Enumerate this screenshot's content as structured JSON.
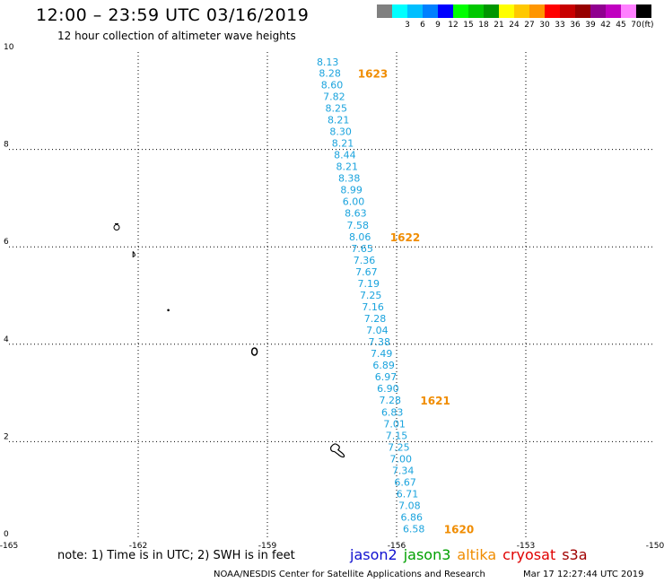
{
  "title": "12:00 – 23:59 UTC 03/16/2019",
  "subtitle": "12 hour collection of altimeter wave heights",
  "legend": {
    "unit": "(ft)",
    "items": [
      {
        "label": "",
        "color": "#808080"
      },
      {
        "label": "3",
        "color": "#00ffff"
      },
      {
        "label": "6",
        "color": "#00bfff"
      },
      {
        "label": "9",
        "color": "#0080ff"
      },
      {
        "label": "12",
        "color": "#0000ff"
      },
      {
        "label": "15",
        "color": "#00ff00"
      },
      {
        "label": "18",
        "color": "#00c800"
      },
      {
        "label": "21",
        "color": "#009600"
      },
      {
        "label": "24",
        "color": "#ffff00"
      },
      {
        "label": "27",
        "color": "#ffc800"
      },
      {
        "label": "30",
        "color": "#ff9600"
      },
      {
        "label": "33",
        "color": "#ff0000"
      },
      {
        "label": "36",
        "color": "#c80000"
      },
      {
        "label": "39",
        "color": "#960000"
      },
      {
        "label": "42",
        "color": "#900090"
      },
      {
        "label": "45",
        "color": "#c000c0"
      },
      {
        "label": "70",
        "color": "#ff80ff"
      },
      {
        "label": "",
        "color": "#000000"
      }
    ]
  },
  "map": {
    "lon_range": [
      -165,
      -150
    ],
    "lat_range": [
      0,
      10
    ],
    "lon_ticks": [
      "-165",
      "-162",
      "-159",
      "-156",
      "-153",
      "-150"
    ],
    "lat_ticks": [
      "0",
      "2",
      "4",
      "6",
      "8",
      "10"
    ],
    "swh_color": "#1aa3dd",
    "pass_color": "#f08c00",
    "islands": [
      {
        "name": "island-a",
        "lon": -162.5,
        "lat": 6.4
      },
      {
        "name": "island-b",
        "lon": -162.1,
        "lat": 5.85
      },
      {
        "name": "island-c",
        "lon": -161.3,
        "lat": 4.7
      },
      {
        "name": "island-d",
        "lon": -159.3,
        "lat": 3.85
      },
      {
        "name": "island-e",
        "lon": -157.4,
        "lat": 1.85
      }
    ]
  },
  "track": {
    "swh": [
      {
        "label": "8.13",
        "lon": -157.6,
        "lat": 9.8
      },
      {
        "label": "8.28",
        "lon": -157.55,
        "lat": 9.57
      },
      {
        "label": "8.60",
        "lon": -157.5,
        "lat": 9.33
      },
      {
        "label": "7.82",
        "lon": -157.45,
        "lat": 9.09
      },
      {
        "label": "8.25",
        "lon": -157.4,
        "lat": 8.85
      },
      {
        "label": "8.21",
        "lon": -157.35,
        "lat": 8.61
      },
      {
        "label": "8.30",
        "lon": -157.3,
        "lat": 8.37
      },
      {
        "label": "8.21",
        "lon": -157.25,
        "lat": 8.13
      },
      {
        "label": "8.44",
        "lon": -157.2,
        "lat": 7.89
      },
      {
        "label": "8.21",
        "lon": -157.15,
        "lat": 7.65
      },
      {
        "label": "8.38",
        "lon": -157.1,
        "lat": 7.41
      },
      {
        "label": "8.99",
        "lon": -157.05,
        "lat": 7.17
      },
      {
        "label": "6.00",
        "lon": -157.0,
        "lat": 6.93
      },
      {
        "label": "8.63",
        "lon": -156.95,
        "lat": 6.69
      },
      {
        "label": "7.58",
        "lon": -156.9,
        "lat": 6.45
      },
      {
        "label": "8.06",
        "lon": -156.85,
        "lat": 6.21
      },
      {
        "label": "7.65",
        "lon": -156.8,
        "lat": 5.97
      },
      {
        "label": "7.36",
        "lon": -156.75,
        "lat": 5.73
      },
      {
        "label": "7.67",
        "lon": -156.7,
        "lat": 5.49
      },
      {
        "label": "7.19",
        "lon": -156.65,
        "lat": 5.25
      },
      {
        "label": "7.25",
        "lon": -156.6,
        "lat": 5.01
      },
      {
        "label": "7.16",
        "lon": -156.55,
        "lat": 4.77
      },
      {
        "label": "7.28",
        "lon": -156.5,
        "lat": 4.53
      },
      {
        "label": "7.04",
        "lon": -156.45,
        "lat": 4.29
      },
      {
        "label": "7.38",
        "lon": -156.4,
        "lat": 4.05
      },
      {
        "label": "7.49",
        "lon": -156.35,
        "lat": 3.81
      },
      {
        "label": "6.89",
        "lon": -156.3,
        "lat": 3.57
      },
      {
        "label": "6.97",
        "lon": -156.25,
        "lat": 3.33
      },
      {
        "label": "6.90",
        "lon": -156.2,
        "lat": 3.09
      },
      {
        "label": "7.28",
        "lon": -156.15,
        "lat": 2.85
      },
      {
        "label": "6.83",
        "lon": -156.1,
        "lat": 2.61
      },
      {
        "label": "7.01",
        "lon": -156.05,
        "lat": 2.37
      },
      {
        "label": "7.15",
        "lon": -156.0,
        "lat": 2.13
      },
      {
        "label": "7.25",
        "lon": -155.95,
        "lat": 1.89
      },
      {
        "label": "7.00",
        "lon": -155.9,
        "lat": 1.65
      },
      {
        "label": "7.34",
        "lon": -155.85,
        "lat": 1.41
      },
      {
        "label": "6.67",
        "lon": -155.8,
        "lat": 1.17
      },
      {
        "label": "6.71",
        "lon": -155.75,
        "lat": 0.93
      },
      {
        "label": "7.08",
        "lon": -155.7,
        "lat": 0.69
      },
      {
        "label": "6.86",
        "lon": -155.65,
        "lat": 0.45
      },
      {
        "label": "6.58",
        "lon": -155.6,
        "lat": 0.21
      }
    ],
    "pass_times": [
      {
        "label": "1623",
        "lon": -156.9,
        "lat": 9.57
      },
      {
        "label": "1622",
        "lon": -156.15,
        "lat": 6.21
      },
      {
        "label": "1621",
        "lon": -155.45,
        "lat": 2.85
      },
      {
        "label": "1620",
        "lon": -154.9,
        "lat": 0.21
      }
    ]
  },
  "note": "note:  1) Time is in UTC;  2) SWH is in feet",
  "satellites": [
    {
      "label": "jason2",
      "color": "#1010d0"
    },
    {
      "label": "jason3",
      "color": "#00a000"
    },
    {
      "label": "altika",
      "color": "#f08c00"
    },
    {
      "label": "cryosat",
      "color": "#e00000"
    },
    {
      "label": "s3a",
      "color": "#a00000"
    }
  ],
  "credit": "NOAA/NESDIS Center for Satellite Applications and Research",
  "timestamp": "Mar 17 12:27:44 UTC 2019"
}
